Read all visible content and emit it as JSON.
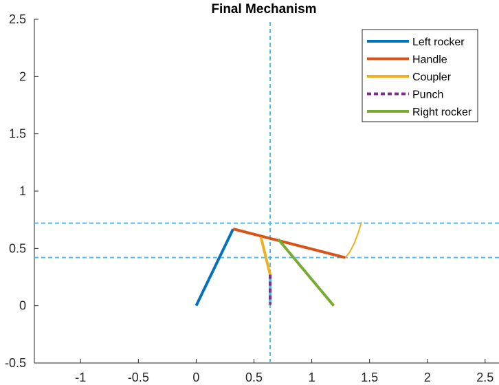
{
  "chart_data": {
    "type": "line",
    "title": "Final Mechanism",
    "xlabel": "",
    "ylabel": "",
    "xlim": [
      -1.4,
      2.62
    ],
    "ylim": [
      -0.5,
      2.5
    ],
    "xticks": [
      -1,
      -0.5,
      0,
      0.5,
      1,
      1.5,
      2,
      2.5
    ],
    "xtick_labels": [
      "-1",
      "-0.5",
      "0",
      "0.5",
      "1",
      "1.5",
      "2",
      "2.5"
    ],
    "yticks": [
      -0.5,
      0,
      0.5,
      1,
      1.5,
      2,
      2.5
    ],
    "ytick_labels": [
      "-0.5",
      "0",
      "0.5",
      "1",
      "1.5",
      "2",
      "2.5"
    ],
    "grid": false,
    "legend_position": "top-right",
    "series": [
      {
        "name": "Left rocker",
        "color": "#0072BD",
        "width": 4,
        "x": [
          0,
          0.32
        ],
        "y": [
          0,
          0.67
        ]
      },
      {
        "name": "Handle",
        "color": "#D95319",
        "width": 4,
        "x": [
          0.32,
          1.29
        ],
        "y": [
          0.67,
          0.42
        ]
      },
      {
        "name": "Coupler",
        "color": "#EDB120",
        "width": 4,
        "x": [
          0.56,
          0.64
        ],
        "y": [
          0.6,
          0.27
        ]
      },
      {
        "name": "Punch",
        "color": "#7E2F8E",
        "width": 4,
        "dash": true,
        "x": [
          0.64,
          0.64
        ],
        "y": [
          0.27,
          0.01
        ]
      },
      {
        "name": "Right rocker",
        "color": "#77AC30",
        "width": 4,
        "x": [
          0.71,
          1.19
        ],
        "y": [
          0.58,
          0
        ]
      }
    ],
    "extra_lines": [
      {
        "color": "#4DBEEE",
        "width": 2,
        "dash": true,
        "x": [
          0.64,
          0.64
        ],
        "y": [
          -0.5,
          2.5
        ]
      },
      {
        "color": "#4DBEEE",
        "width": 2,
        "dash": true,
        "x": [
          -1.4,
          2.62
        ],
        "y": [
          0.72,
          0.72
        ]
      },
      {
        "color": "#4DBEEE",
        "width": 2,
        "dash": true,
        "x": [
          -1.4,
          2.62
        ],
        "y": [
          0.42,
          0.42
        ]
      },
      {
        "color": "#EDB120",
        "width": 2,
        "dash": false,
        "x": [
          1.29,
          1.33,
          1.37,
          1.4,
          1.43
        ],
        "y": [
          0.42,
          0.47,
          0.55,
          0.63,
          0.73
        ]
      }
    ],
    "legend_entries": [
      "Left rocker",
      "Handle",
      "Coupler",
      "Punch",
      "Right rocker"
    ]
  }
}
